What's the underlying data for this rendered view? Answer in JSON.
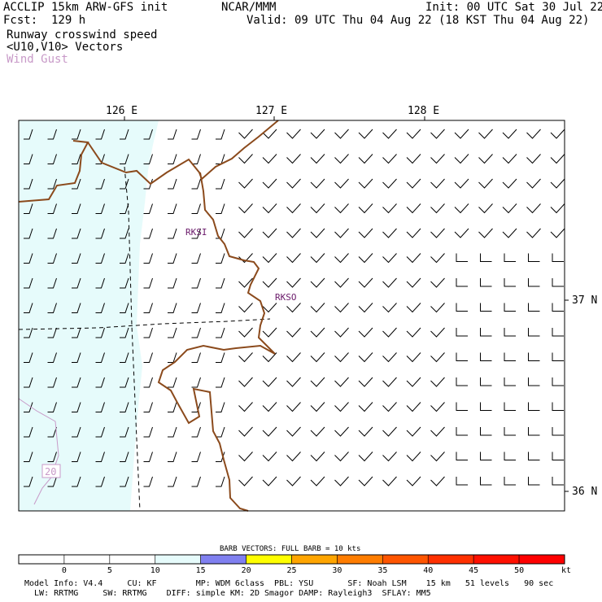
{
  "header": {
    "left_line1": "ACCLIP 15km ARW-GFS init",
    "left_line2": "Fcst:  129 h",
    "center_line1": "NCAR/MMM",
    "init": "Init: 00 UTC Sat 30 Jul 22",
    "valid": "Valid: 09 UTC Thu 04 Aug 22 (18 KST Thu 04 Aug 22)"
  },
  "legend": {
    "line1": "Runway crosswind speed",
    "line2": "<U10,V10> Vectors",
    "line3": "Wind Gust"
  },
  "map": {
    "lon_labels": [
      "126 E",
      "127 E",
      "128 E"
    ],
    "lat_labels": [
      "37 N",
      "36 N"
    ],
    "stations": [
      "RKSI",
      "RKSO"
    ],
    "contour_label": "20",
    "colors": {
      "sea_shade": "#e6fbfb",
      "coastline": "#8b4a1c",
      "gust_contour": "#c89ac8",
      "station_text": "#6a1a6a"
    }
  },
  "colorbar": {
    "title": "BARB VECTORS:  FULL BARB = 10 kts",
    "ticks": [
      "0",
      "5",
      "10",
      "15",
      "20",
      "25",
      "30",
      "35",
      "40",
      "45",
      "50"
    ],
    "unit": "kt",
    "colors": [
      "#ffffff",
      "#ffffff",
      "#ffffff",
      "#e6fbfb",
      "#8080f0",
      "#ffff00",
      "#ffa500",
      "#ff7d00",
      "#ff5500",
      "#ff3000",
      "#ff1000",
      "#ff0000"
    ]
  },
  "footer": {
    "line1": "Model Info: V4.4     CU: KF        MP: WDM 6class  PBL: YSU       SF: Noah LSM    15 km   51 levels   90 sec",
    "line2": "  LW: RRTMG     SW: RRTMG    DIFF: simple KM: 2D Smagor DAMP: Rayleigh3  SFLAY: MM5"
  }
}
